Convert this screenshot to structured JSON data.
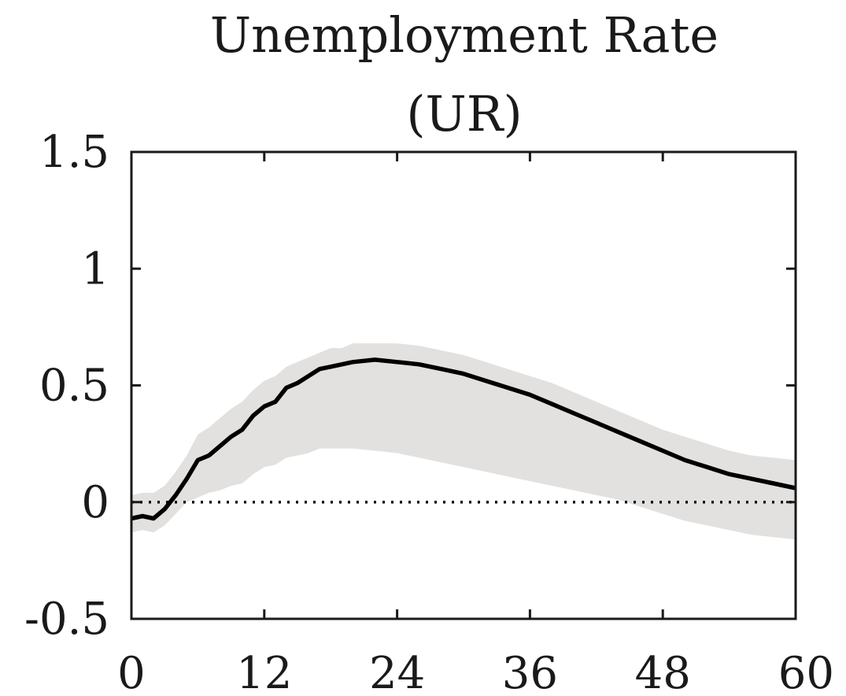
{
  "chart_data": {
    "type": "line",
    "title": "Unemployment Rate",
    "subtitle": "(UR)",
    "xlabel": "",
    "ylabel": "",
    "xlim": [
      0,
      60
    ],
    "ylim": [
      -0.5,
      1.5
    ],
    "xticks": [
      0,
      12,
      24,
      36,
      48,
      60
    ],
    "xtick_labels": [
      "0",
      "12",
      "24",
      "36",
      "48",
      "60"
    ],
    "yticks": [
      -0.5,
      0,
      0.5,
      1,
      1.5
    ],
    "ytick_labels": [
      "-0.5",
      "0",
      "0.5",
      "1",
      "1.5"
    ],
    "grid": false,
    "zero_line": {
      "y": 0,
      "style": "dotted",
      "color": "#000000"
    },
    "colors": {
      "line": "#000000",
      "band": "#e2e1df",
      "axes": "#1a1a1a"
    },
    "x": [
      0,
      1,
      2,
      3,
      4,
      5,
      6,
      7,
      8,
      9,
      10,
      11,
      12,
      13,
      14,
      15,
      16,
      17,
      18,
      19,
      20,
      22,
      24,
      26,
      28,
      30,
      32,
      34,
      36,
      38,
      40,
      42,
      44,
      46,
      48,
      50,
      52,
      54,
      56,
      58,
      60
    ],
    "series": [
      {
        "values": [
          -0.07,
          -0.06,
          -0.07,
          -0.03,
          0.03,
          0.1,
          0.18,
          0.2,
          0.24,
          0.28,
          0.31,
          0.37,
          0.41,
          0.43,
          0.49,
          0.51,
          0.54,
          0.57,
          0.58,
          0.59,
          0.6,
          0.61,
          0.6,
          0.59,
          0.57,
          0.55,
          0.52,
          0.49,
          0.46,
          0.42,
          0.38,
          0.34,
          0.3,
          0.26,
          0.22,
          0.18,
          0.15,
          0.12,
          0.1,
          0.08,
          0.06
        ]
      }
    ],
    "band": {
      "lower": [
        -0.13,
        -0.12,
        -0.13,
        -0.1,
        -0.05,
        0.0,
        0.02,
        0.04,
        0.05,
        0.07,
        0.08,
        0.12,
        0.15,
        0.16,
        0.19,
        0.2,
        0.21,
        0.23,
        0.23,
        0.23,
        0.23,
        0.22,
        0.21,
        0.19,
        0.17,
        0.15,
        0.13,
        0.11,
        0.09,
        0.07,
        0.05,
        0.03,
        0.01,
        -0.02,
        -0.05,
        -0.08,
        -0.1,
        -0.12,
        -0.14,
        -0.15,
        -0.16
      ],
      "upper": [
        0.03,
        0.04,
        0.04,
        0.07,
        0.13,
        0.2,
        0.29,
        0.32,
        0.36,
        0.4,
        0.43,
        0.48,
        0.52,
        0.54,
        0.58,
        0.6,
        0.62,
        0.64,
        0.66,
        0.66,
        0.68,
        0.68,
        0.68,
        0.67,
        0.65,
        0.63,
        0.6,
        0.57,
        0.54,
        0.51,
        0.47,
        0.43,
        0.39,
        0.35,
        0.31,
        0.28,
        0.25,
        0.22,
        0.2,
        0.19,
        0.18
      ]
    }
  }
}
